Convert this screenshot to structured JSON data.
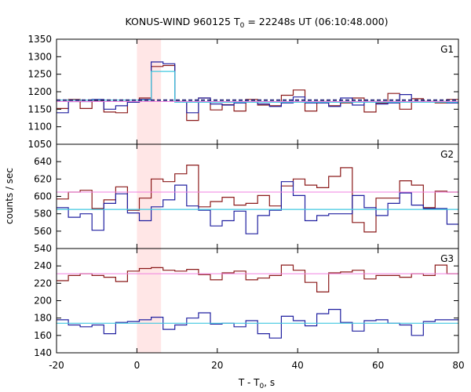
{
  "chart_data": {
    "type": "line",
    "title": "KONUS-WIND 960125 T",
    "title_sub": "0",
    "title_rest": " = 22248s UT (06:10:48.000)",
    "xlabel": "T - T",
    "xlabel_sub": "0",
    "xlabel_rest": ", s",
    "ylabel": "counts / sec",
    "xlim": [
      -20,
      80
    ],
    "xticks": [
      "-20",
      "0",
      "20",
      "40",
      "60",
      "80"
    ],
    "shade_region": [
      0,
      6
    ],
    "bin_start": -20,
    "bin_width": 2.944,
    "panels": [
      {
        "name": "G1",
        "ylim": [
          1050,
          1350
        ],
        "yticks": [
          "1050",
          "1100",
          "1150",
          "1200",
          "1250",
          "1300",
          "1350"
        ],
        "series": [
          {
            "color": "#8b1a1a",
            "values": [
              1152,
              1178,
              1152,
              1173,
              1142,
              1140,
              1170,
              1182,
              1272,
              1275,
              1172,
              1118,
              1182,
              1148,
              1163,
              1145,
              1178,
              1162,
              1160,
              1190,
              1205,
              1145,
              1172,
              1160,
              1168,
              1182,
              1142,
              1168,
              1195,
              1150,
              1180,
              1172,
              1168,
              1178,
              1162
            ]
          },
          {
            "color": "#2020a0",
            "values": [
              1140,
              1172,
              1172,
              1178,
              1150,
              1160,
              1170,
              1178,
              1285,
              1280,
              1172,
              1140,
              1182,
              1165,
              1162,
              1168,
              1172,
              1165,
              1158,
              1168,
              1185,
              1168,
              1168,
              1158,
              1182,
              1162,
              1172,
              1165,
              1168,
              1192,
              1172,
              1172,
              1172,
              1168,
              1165
            ]
          },
          {
            "color": "#40c8e0",
            "values": [
              1176,
              1176,
              1176,
              1176,
              1176,
              1176,
              1176,
              1176,
              1258,
              1258,
              1170,
              1170,
              1170,
              1170,
              1170,
              1170,
              1170,
              1170,
              1170,
              1170,
              1170,
              1170,
              1170,
              1170,
              1170,
              1170,
              1170,
              1170,
              1170,
              1170,
              1170,
              1170,
              1170,
              1170,
              1170
            ]
          }
        ],
        "hlines": [
          {
            "color": "#f080e0",
            "value": 1172,
            "style": "solid"
          },
          {
            "color": "#2a2a7a",
            "value": 1176,
            "style": "dashed"
          }
        ]
      },
      {
        "name": "G2",
        "ylim": [
          540,
          660
        ],
        "yticks": [
          "540",
          "560",
          "580",
          "600",
          "620",
          "640"
        ],
        "series": [
          {
            "color": "#8b1a1a",
            "values": [
              597,
              605,
              607,
              586,
              596,
              611,
              584,
              598,
              620,
              617,
              626,
              636,
              588,
              594,
              599,
              590,
              592,
              601,
              589,
              612,
              620,
              613,
              610,
              623,
              633,
              570,
              559,
              598,
              598,
              618,
              613,
              587,
              606,
              605,
              608
            ]
          },
          {
            "color": "#2020a0",
            "values": [
              587,
              576,
              580,
              561,
              592,
              603,
              581,
              572,
              588,
              596,
              613,
              589,
              584,
              566,
              572,
              583,
              557,
              578,
              584,
              617,
              601,
              572,
              578,
              580,
              580,
              601,
              587,
              578,
              592,
              604,
              590,
              586,
              586,
              568,
              558
            ]
          },
          {
            "color": "#40c8e0",
            "values": [
              585,
              585,
              585,
              585,
              585,
              585,
              585,
              585,
              585,
              585,
              585,
              585,
              585,
              585,
              585,
              585,
              585,
              585,
              585,
              585,
              585,
              585,
              585,
              585,
              585,
              585,
              585,
              585,
              585,
              585,
              585,
              585,
              585,
              585,
              585
            ]
          }
        ],
        "hlines": [
          {
            "color": "#f080e0",
            "value": 605,
            "style": "solid"
          }
        ]
      },
      {
        "name": "G3",
        "ylim": [
          140,
          260
        ],
        "yticks": [
          "140",
          "160",
          "180",
          "200",
          "220",
          "240"
        ],
        "series": [
          {
            "color": "#8b1a1a",
            "values": [
              223,
              229,
              231,
              229,
              227,
              222,
              234,
              237,
              238,
              235,
              234,
              236,
              230,
              224,
              232,
              234,
              224,
              226,
              229,
              241,
              235,
              221,
              210,
              232,
              233,
              235,
              225,
              229,
              229,
              227,
              231,
              229,
              241,
              231,
              234
            ]
          },
          {
            "color": "#2020a0",
            "values": [
              178,
              172,
              170,
              172,
              162,
              175,
              176,
              178,
              181,
              167,
              172,
              180,
              186,
              173,
              174,
              170,
              177,
              162,
              157,
              182,
              177,
              171,
              185,
              190,
              175,
              165,
              177,
              178,
              174,
              172,
              160,
              176,
              178,
              178,
              173
            ]
          },
          {
            "color": "#40c8e0",
            "values": [
              174,
              174,
              174,
              174,
              174,
              174,
              174,
              174,
              174,
              174,
              174,
              174,
              174,
              174,
              174,
              174,
              174,
              174,
              174,
              174,
              174,
              174,
              174,
              174,
              174,
              174,
              174,
              174,
              174,
              174,
              174,
              174,
              174,
              174,
              174
            ]
          }
        ],
        "hlines": [
          {
            "color": "#f080e0",
            "value": 231,
            "style": "solid"
          }
        ]
      }
    ]
  }
}
